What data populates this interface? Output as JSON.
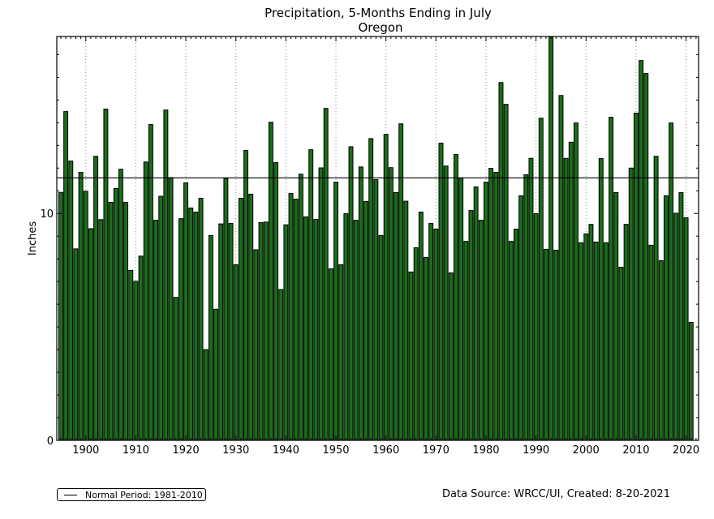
{
  "chart_data": {
    "type": "bar",
    "title": "Precipitation, 5-Months Ending in July",
    "subtitle": "Oregon",
    "xlabel": "",
    "ylabel": "Inches",
    "xlim": [
      1894.2,
      2022.5
    ],
    "ylim": [
      0,
      17.8
    ],
    "xticks": [
      1900,
      1910,
      1920,
      1930,
      1940,
      1950,
      1960,
      1970,
      1980,
      1990,
      2000,
      2010,
      2020
    ],
    "yticks": [
      0,
      10
    ],
    "yminor_step": 1,
    "grid": "vertical dotted at major x ticks",
    "bar_color": "#1a6e1a",
    "bar_edge_color": "#000000",
    "normal": {
      "label": "Normal Period: 1981-2010",
      "value": 11.57
    },
    "legend_position": "bottom-left (below plot)",
    "x": [
      1895,
      1896,
      1897,
      1898,
      1899,
      1900,
      1901,
      1902,
      1903,
      1904,
      1905,
      1906,
      1907,
      1908,
      1909,
      1910,
      1911,
      1912,
      1913,
      1914,
      1915,
      1916,
      1917,
      1918,
      1919,
      1920,
      1921,
      1922,
      1923,
      1924,
      1925,
      1926,
      1927,
      1928,
      1929,
      1930,
      1931,
      1932,
      1933,
      1934,
      1935,
      1936,
      1937,
      1938,
      1939,
      1940,
      1941,
      1942,
      1943,
      1944,
      1945,
      1946,
      1947,
      1948,
      1949,
      1950,
      1951,
      1952,
      1953,
      1954,
      1955,
      1956,
      1957,
      1958,
      1959,
      1960,
      1961,
      1962,
      1963,
      1964,
      1965,
      1966,
      1967,
      1968,
      1969,
      1970,
      1971,
      1972,
      1973,
      1974,
      1975,
      1976,
      1977,
      1978,
      1979,
      1980,
      1981,
      1982,
      1983,
      1984,
      1985,
      1986,
      1987,
      1988,
      1989,
      1990,
      1991,
      1992,
      1993,
      1994,
      1995,
      1996,
      1997,
      1998,
      1999,
      2000,
      2001,
      2002,
      2003,
      2004,
      2005,
      2006,
      2007,
      2008,
      2009,
      2010,
      2011,
      2012,
      2013,
      2014,
      2015,
      2016,
      2017,
      2018,
      2019,
      2020,
      2021
    ],
    "values": [
      10.93,
      14.49,
      12.31,
      8.44,
      11.81,
      10.98,
      9.33,
      12.52,
      9.73,
      14.6,
      10.49,
      11.1,
      11.95,
      10.49,
      7.49,
      7.01,
      8.12,
      12.27,
      13.92,
      9.7,
      10.76,
      14.56,
      11.58,
      6.3,
      9.77,
      11.35,
      10.24,
      10.06,
      10.67,
      4.0,
      9.03,
      5.78,
      9.54,
      11.54,
      9.56,
      7.74,
      10.67,
      12.78,
      10.85,
      8.4,
      9.6,
      9.62,
      14.02,
      12.24,
      6.65,
      9.5,
      10.88,
      10.63,
      11.73,
      9.85,
      12.81,
      9.74,
      12.01,
      14.63,
      7.56,
      11.38,
      7.74,
      9.99,
      12.94,
      9.7,
      12.05,
      10.53,
      13.3,
      11.49,
      9.03,
      13.49,
      12.02,
      10.92,
      13.95,
      10.54,
      7.42,
      8.49,
      10.06,
      8.06,
      9.56,
      9.31,
      13.1,
      12.09,
      7.38,
      12.6,
      11.56,
      8.77,
      10.13,
      11.17,
      9.7,
      11.38,
      11.99,
      11.81,
      15.77,
      14.81,
      8.77,
      9.31,
      10.78,
      11.71,
      12.43,
      9.99,
      14.2,
      8.42,
      17.9,
      8.38,
      15.2,
      12.43,
      13.14,
      13.99,
      8.71,
      9.1,
      9.52,
      8.74,
      12.42,
      8.71,
      14.24,
      10.92,
      7.63,
      9.52,
      12.0,
      14.42,
      16.74,
      16.17,
      8.6,
      12.52,
      7.92,
      10.78,
      13.99,
      10.01,
      10.92,
      9.81,
      5.2
    ]
  },
  "legend": {
    "label": "Normal Period: 1981-2010"
  },
  "footer": {
    "source": "Data Source: WRCC/UI, Created: 8-20-2021"
  }
}
